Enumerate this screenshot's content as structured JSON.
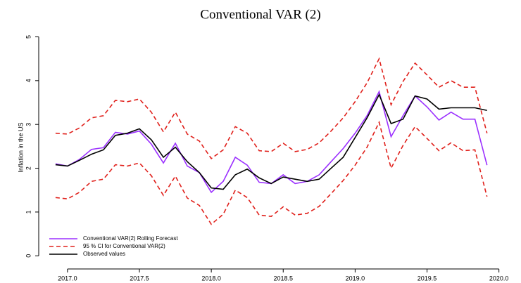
{
  "chart_data": {
    "type": "line",
    "title": "Conventional VAR (2)",
    "y_label": "Inflation in the US",
    "x": [
      2016.917,
      2017.0,
      2017.083,
      2017.167,
      2017.25,
      2017.333,
      2017.417,
      2017.5,
      2017.583,
      2017.667,
      2017.75,
      2017.833,
      2017.917,
      2018.0,
      2018.083,
      2018.167,
      2018.25,
      2018.333,
      2018.417,
      2018.5,
      2018.583,
      2018.667,
      2018.75,
      2018.833,
      2018.917,
      2019.0,
      2019.083,
      2019.167,
      2019.25,
      2019.333,
      2019.417,
      2019.5,
      2019.583,
      2019.667,
      2019.75,
      2019.833,
      2019.917
    ],
    "series": [
      {
        "name": "Conventional VAR(2) Rolling Forecast",
        "color": "#9b30ff",
        "dashed": false,
        "values": [
          2.1,
          2.05,
          2.2,
          2.43,
          2.47,
          2.82,
          2.78,
          2.85,
          2.55,
          2.12,
          2.57,
          2.05,
          1.9,
          1.45,
          1.7,
          2.25,
          2.07,
          1.68,
          1.65,
          1.85,
          1.65,
          1.7,
          1.85,
          2.15,
          2.45,
          2.8,
          3.2,
          3.75,
          2.72,
          3.2,
          3.65,
          3.4,
          3.1,
          3.28,
          3.12,
          3.12,
          2.07
        ]
      },
      {
        "name": "95 % CI for Conventional VAR(2)",
        "color": "#e0201b",
        "dashed": true,
        "upper": [
          2.8,
          2.78,
          2.92,
          3.15,
          3.2,
          3.55,
          3.52,
          3.58,
          3.28,
          2.83,
          3.28,
          2.78,
          2.62,
          2.22,
          2.42,
          2.95,
          2.8,
          2.4,
          2.38,
          2.57,
          2.38,
          2.43,
          2.58,
          2.85,
          3.15,
          3.52,
          3.95,
          4.5,
          3.45,
          3.98,
          4.4,
          4.13,
          3.85,
          4.0,
          3.85,
          3.85,
          2.8
        ],
        "lower": [
          1.33,
          1.3,
          1.45,
          1.7,
          1.75,
          2.08,
          2.05,
          2.12,
          1.83,
          1.38,
          1.82,
          1.32,
          1.15,
          0.72,
          0.95,
          1.5,
          1.33,
          0.93,
          0.9,
          1.12,
          0.93,
          0.97,
          1.13,
          1.42,
          1.72,
          2.07,
          2.48,
          3.05,
          2.0,
          2.52,
          2.95,
          2.68,
          2.4,
          2.58,
          2.4,
          2.42,
          1.35
        ]
      },
      {
        "name": "Observed values",
        "color": "#000000",
        "dashed": false,
        "values": [
          2.08,
          2.05,
          2.18,
          2.32,
          2.42,
          2.75,
          2.8,
          2.9,
          2.65,
          2.25,
          2.48,
          2.15,
          1.9,
          1.55,
          1.52,
          1.85,
          1.98,
          1.78,
          1.65,
          1.8,
          1.75,
          1.7,
          1.75,
          2.0,
          2.25,
          2.7,
          3.15,
          3.68,
          3.02,
          3.12,
          3.65,
          3.58,
          3.35,
          3.38,
          3.38,
          3.38,
          3.32
        ]
      }
    ],
    "xlim": [
      2016.8,
      2020.08
    ],
    "ylim": [
      -0.3,
      5.2
    ],
    "xticks": [
      {
        "value": 2017,
        "label": "2017.0"
      },
      2017.5,
      {
        "value": 2018,
        "label": "2018.0"
      },
      2018.5,
      {
        "value": 2019,
        "label": "2019.0"
      },
      2019.5,
      {
        "value": 2020,
        "label": "2020.0"
      }
    ],
    "yticks": [
      0,
      1,
      2,
      3,
      4,
      5
    ],
    "legend": "bottom-left"
  }
}
